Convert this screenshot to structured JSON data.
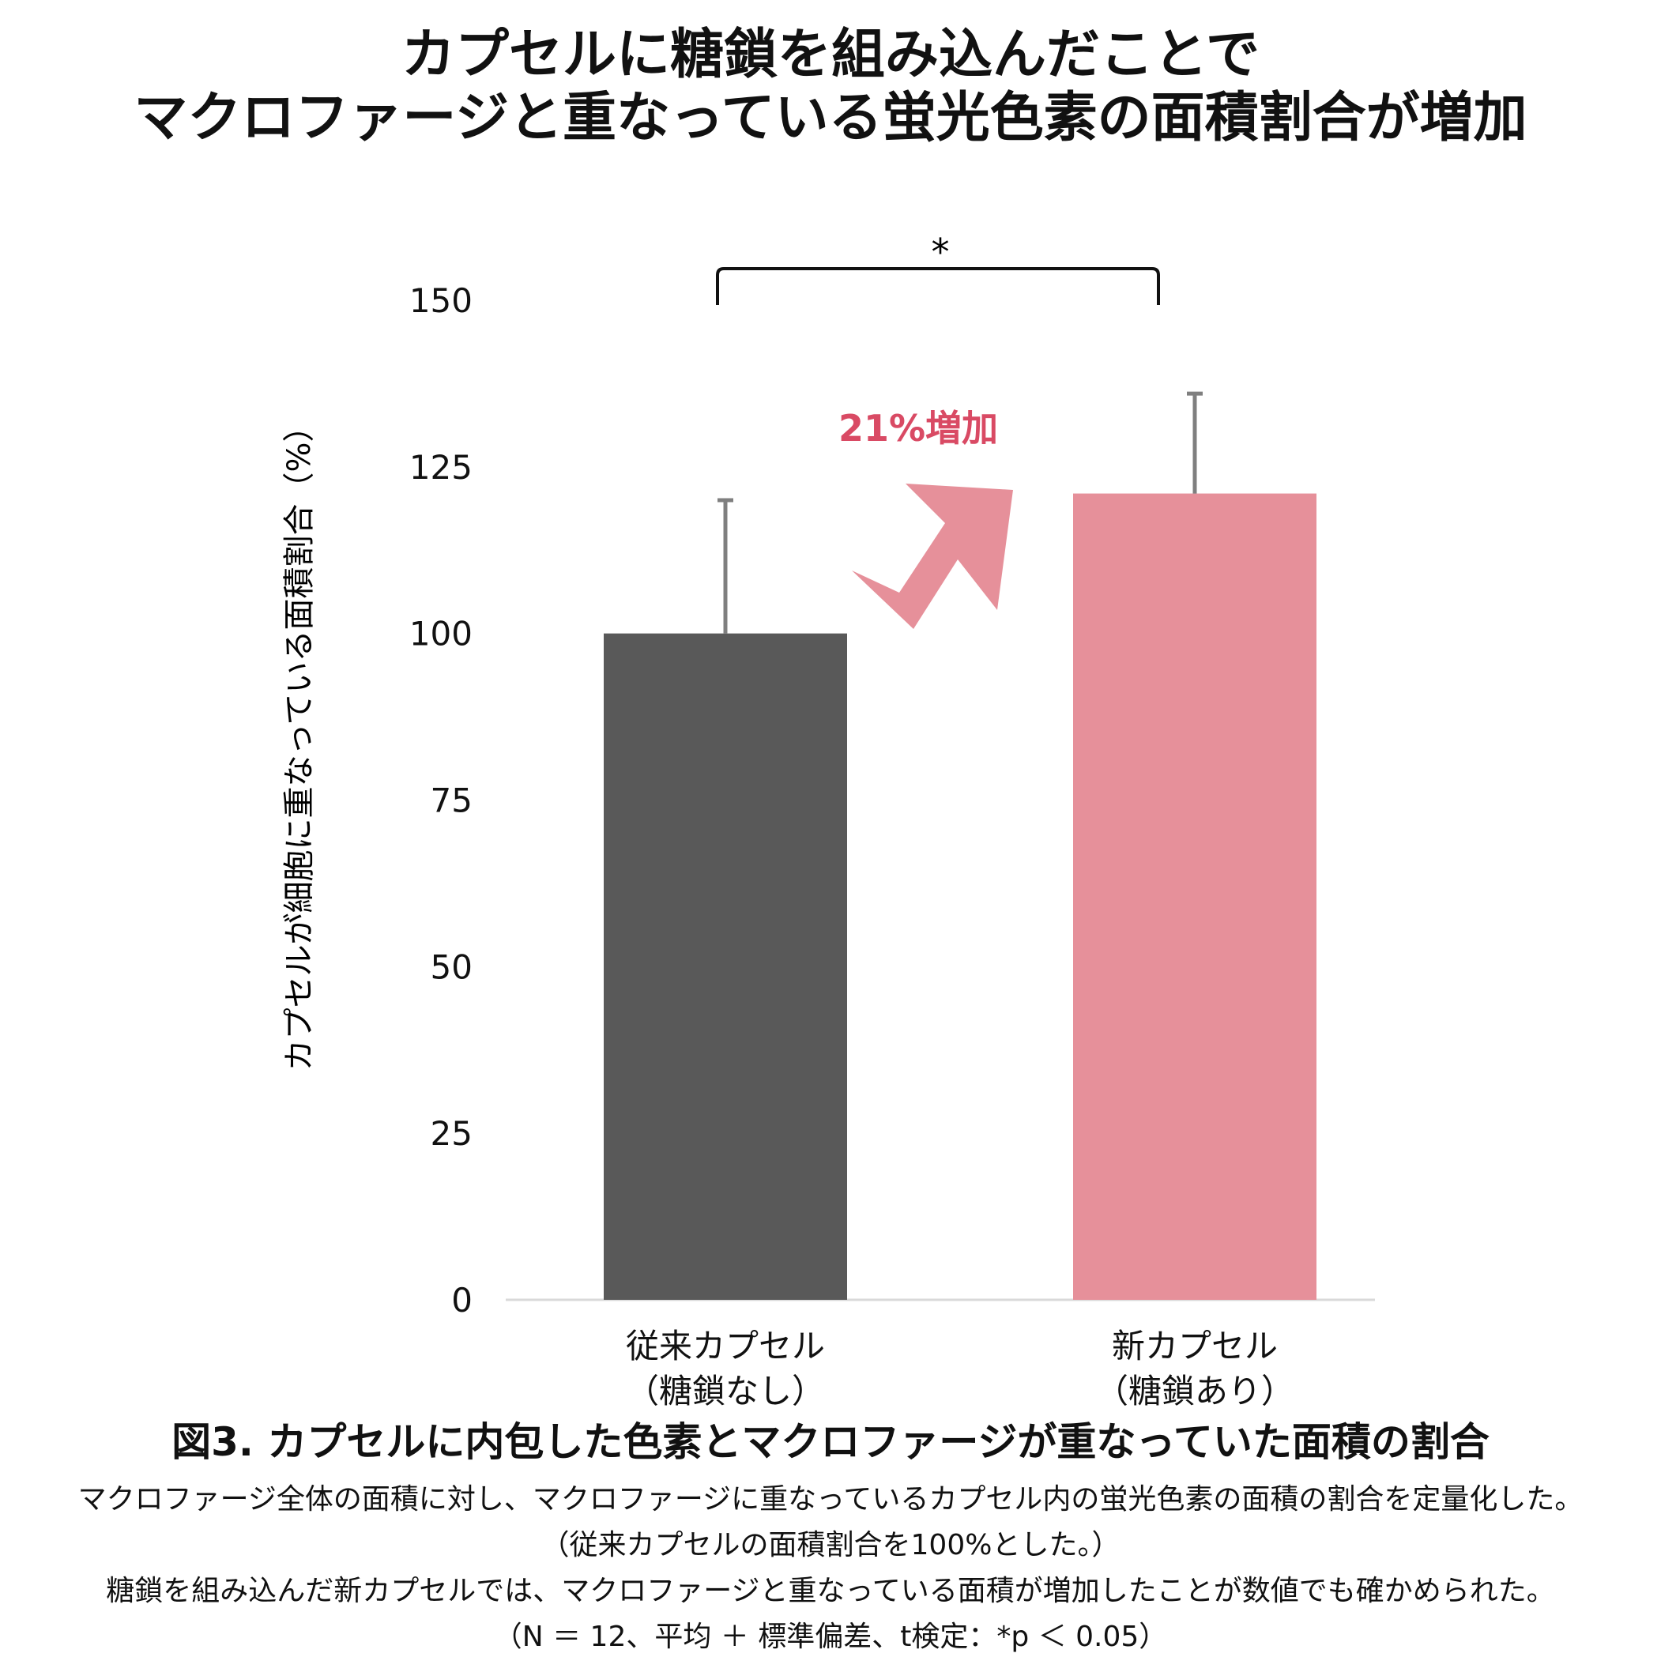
{
  "title": {
    "line1": "カプセルに糖鎖を組み込んだことで",
    "line2": "マクロファージと重なっている蛍光色素の面積割合が増加"
  },
  "chart_data": {
    "type": "bar",
    "categories": [
      {
        "line1": "従来カプセル",
        "line2": "（糖鎖なし）"
      },
      {
        "line1": "新カプセル",
        "line2": "（糖鎖あり）"
      }
    ],
    "values": [
      100,
      121
    ],
    "error_plus": [
      20,
      15
    ],
    "bar_colors": [
      "#595959",
      "#e6909a"
    ],
    "ylabel": "カプセルが細胞に重なっている面積割合（%）",
    "ylim": [
      0,
      150
    ],
    "yticks": [
      0,
      25,
      50,
      75,
      100,
      125,
      150
    ],
    "grid": false,
    "significance": {
      "label": "*",
      "between": [
        0,
        1
      ]
    },
    "annotation": {
      "text": "21%増加",
      "color": "#d94a64"
    },
    "arrow_color": "#e6909a",
    "error_bar_color": "#7f7f7f"
  },
  "caption": {
    "title": "図3. カプセルに内包した色素とマクロファージが重なっていた面積の割合",
    "lines": [
      "マクロファージ全体の面積に対し、マクロファージに重なっているカプセル内の蛍光色素の面積の割合を定量化した。",
      "（従来カプセルの面積割合を100%とした。）",
      "糖鎖を組み込んだ新カプセルでは、マクロファージと重なっている面積が増加したことが数値でも確かめられた。",
      "（N ＝ 12、平均 ＋ 標準偏差、t検定：*p ＜ 0.05）"
    ]
  }
}
